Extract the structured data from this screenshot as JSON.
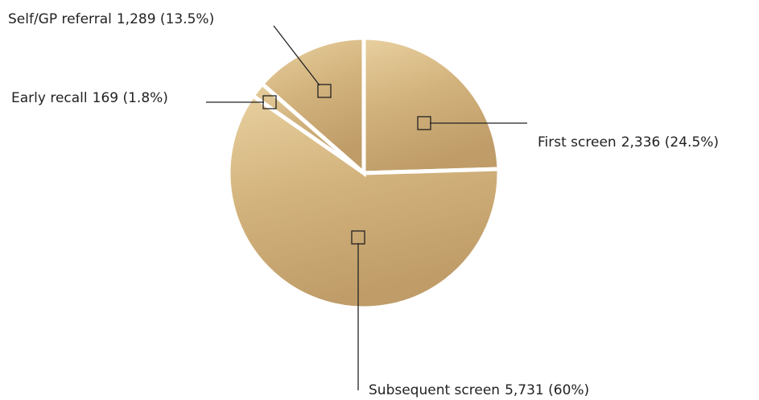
{
  "chart_data": {
    "type": "pie",
    "categories": [
      "First screen",
      "Subsequent screen",
      "Early recall",
      "Self/GP referral"
    ],
    "values": [
      2336,
      5731,
      169,
      1289
    ],
    "value_labels": [
      "2,336 (24.5%)",
      "5,731 (60%)",
      "169 (1.8%)",
      "1,289 (13.5%)"
    ],
    "color": "#d4b47e"
  }
}
